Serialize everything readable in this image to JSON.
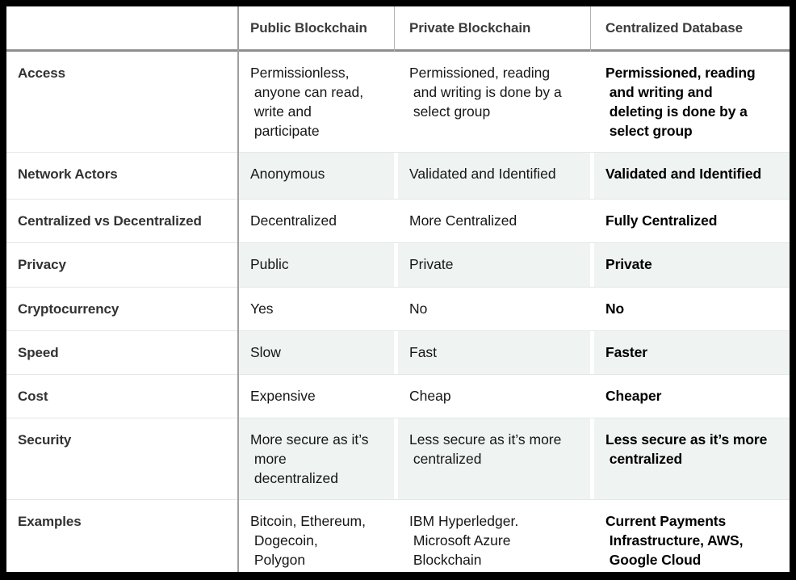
{
  "table": {
    "columns": {
      "label": "",
      "public": "Public Blockchain",
      "private": "Private Blockchain",
      "centralized": "Centralized Database"
    },
    "rows": [
      {
        "label": "Access",
        "public": "Permissionless,\n anyone can read,\n write and\n participate",
        "private": "Permissioned, reading\n and writing is done by a\n select group",
        "centralized": "Permissioned, reading\n and writing and\n deleting is done by a\n select group"
      },
      {
        "label": "Network Actors",
        "public": "Anonymous",
        "private": "Validated and Identified",
        "centralized": "Validated and Identified"
      },
      {
        "label": "Centralized vs Decentralized",
        "public": "Decentralized",
        "private": "More Centralized",
        "centralized": "Fully Centralized"
      },
      {
        "label": "Privacy",
        "public": "Public",
        "private": "Private",
        "centralized": "Private"
      },
      {
        "label": "Cryptocurrency",
        "public": "Yes",
        "private": "No",
        "centralized": "No"
      },
      {
        "label": "Speed",
        "public": "Slow",
        "private": "Fast",
        "centralized": "Faster"
      },
      {
        "label": "Cost",
        "public": "Expensive",
        "private": "Cheap",
        "centralized": "Cheaper"
      },
      {
        "label": "Security",
        "public": "More secure as it’s\n more\n decentralized",
        "private": "Less secure as it’s more\n centralized",
        "centralized": "Less secure as it’s more\n centralized"
      },
      {
        "label": "Examples",
        "public": "Bitcoin, Ethereum,\n Dogecoin,\n Polygon",
        "private": "IBM Hyperledger.\n Microsoft Azure\n Blockchain",
        "centralized": "Current Payments\n Infrastructure, AWS,\n Google Cloud"
      }
    ]
  },
  "colors": {
    "outer_border": "#000000",
    "stripe": "#eff3f2",
    "row_divider": "#e3e7e6",
    "header_divider": "#8f8f8f",
    "label_column_line": "#9f9f9f",
    "header_text": "#3c3c3c",
    "body_text": "#161616",
    "bold_column_text": "#000000"
  }
}
